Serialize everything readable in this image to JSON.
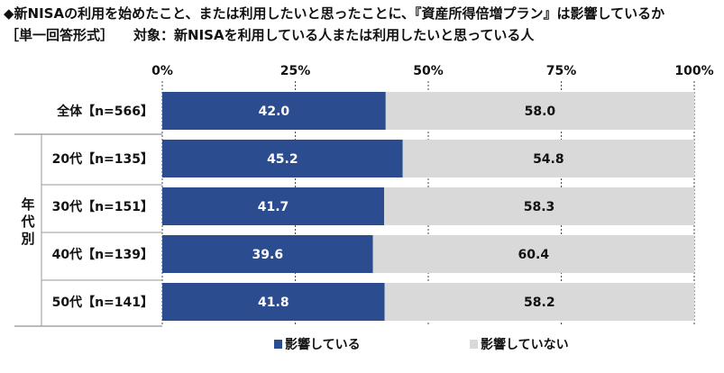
{
  "title": "◆新NISAの利用を始めたこと、または利用したいと思ったことに、『資産所得倍増プラン』は影響しているか",
  "subtitle_format": "［単一回答形式］",
  "subtitle_target": "対象：新NISAを利用している人または利用したいと思っている人",
  "group_label": "年代別",
  "colors": {
    "influenced": "#2b4c8f",
    "not_influenced": "#d9d9d9",
    "grid": "#4a4a4a"
  },
  "chart_data": {
    "type": "bar",
    "orientation": "horizontal",
    "stacked": true,
    "percent_scale": true,
    "xlim": [
      0,
      100
    ],
    "x_ticks": [
      "0%",
      "25%",
      "50%",
      "75%",
      "100%"
    ],
    "x_tick_values": [
      0,
      25,
      50,
      75,
      100
    ],
    "categories": [
      "全体【n=566】",
      "20代【n=135】",
      "30代【n=151】",
      "40代【n=139】",
      "50代【n=141】"
    ],
    "series": [
      {
        "name": "影響している",
        "values": [
          42.0,
          45.2,
          41.7,
          39.6,
          41.8
        ]
      },
      {
        "name": "影響していない",
        "values": [
          58.0,
          54.8,
          58.3,
          60.4,
          58.2
        ]
      }
    ],
    "value_labels": [
      [
        "42.0",
        "45.2",
        "41.7",
        "39.6",
        "41.8"
      ],
      [
        "58.0",
        "54.8",
        "58.3",
        "60.4",
        "58.2"
      ]
    ],
    "legend_position": "bottom"
  }
}
